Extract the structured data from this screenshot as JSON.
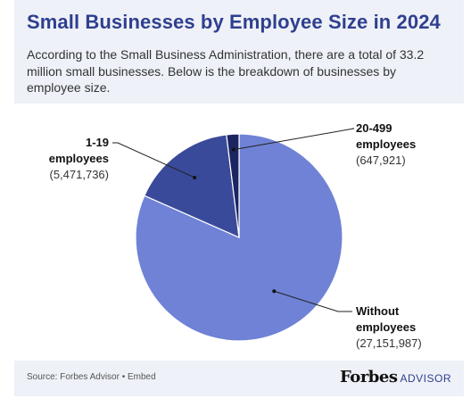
{
  "header": {
    "title": "Small Businesses by Employee Size in 2024",
    "subtitle": "According to the Small Business Administration, there are a total of 33.2 million small businesses. Below is the breakdown of businesses by employee size."
  },
  "footer": {
    "source": "Source: Forbes Advisor • Embed",
    "brand_name": "Forbes",
    "brand_sub": "ADVISOR"
  },
  "chart_data": {
    "type": "pie",
    "title": "Small Businesses by Employee Size in 2024",
    "slices": [
      {
        "label_lines": [
          "Without",
          "employees"
        ],
        "value": 27151987,
        "value_label": "(27,151,987)",
        "color": "#6f82d6"
      },
      {
        "label_lines": [
          "1-19",
          "employees"
        ],
        "value": 5471736,
        "value_label": "(5,471,736)",
        "color": "#3a4a9a"
      },
      {
        "label_lines": [
          "20-499",
          "employees"
        ],
        "value": 647921,
        "value_label": "(647,921)",
        "color": "#1b2560"
      }
    ],
    "legend": "callouts"
  }
}
